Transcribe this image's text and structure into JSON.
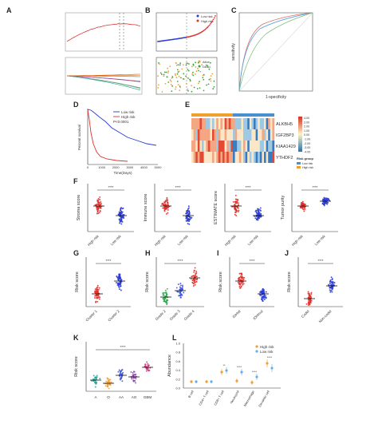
{
  "panel_letters": [
    "A",
    "B",
    "C",
    "D",
    "E",
    "F",
    "G",
    "H",
    "I",
    "J",
    "K",
    "L"
  ],
  "B": {
    "legend": [
      "Low risk",
      "High risk"
    ],
    "legend2": [
      "Alive",
      "Dead"
    ]
  },
  "D": {
    "legend": [
      "Low risk",
      "High risk"
    ],
    "pvalue": "P<0.0001",
    "ylabel": "Percent survival",
    "xlabel": "Time(Days)",
    "xticks": [
      "0",
      "1000",
      "2000",
      "3000",
      "4000",
      "5000"
    ]
  },
  "C": {
    "xlabel": "1-specificity",
    "ylabel": "sensitivity"
  },
  "E": {
    "genes": [
      "ALKBH5",
      "IGF2BP3",
      "KIAA1429",
      "YTHDF2"
    ],
    "scale": [
      "4.00",
      "3.00",
      "2.00",
      "1.00",
      "0.00",
      "-1.00",
      "-2.00",
      "-3.00",
      "-4.00"
    ],
    "risk_group_title": "Risk group",
    "risk_group_items": [
      "Low risk",
      "High risk"
    ]
  },
  "F": {
    "plots": [
      {
        "ylabel": "Stroma score",
        "groups": [
          "High risk",
          "Low risk"
        ],
        "sig": "****"
      },
      {
        "ylabel": "Immune score",
        "groups": [
          "High risk",
          "Low risk"
        ],
        "sig": "****"
      },
      {
        "ylabel": "ESTIMATE score",
        "groups": [
          "High risk",
          "Low risk"
        ],
        "sig": "****"
      },
      {
        "ylabel": "Tumor purity",
        "groups": [
          "High risk",
          "Low risk"
        ],
        "sig": "****"
      }
    ]
  },
  "GJ": {
    "plots": [
      {
        "letter": "G",
        "ylabel": "Risk score",
        "groups": [
          "Cluster 1",
          "Cluster 2"
        ],
        "sig": "****"
      },
      {
        "letter": "H",
        "ylabel": "Risk score",
        "groups": [
          "Grade 2",
          "Grade 3",
          "Grade 4"
        ],
        "sig": "****"
      },
      {
        "letter": "I",
        "ylabel": "Risk score",
        "groups": [
          "IDHwt",
          "IDHmut"
        ],
        "sig": "****"
      },
      {
        "letter": "J",
        "ylabel": "Risk score",
        "groups": [
          "Codel",
          "Non-codel"
        ],
        "sig": "****"
      }
    ]
  },
  "K": {
    "ylabel": "Risk score",
    "groups": [
      "A",
      "O",
      "AA",
      "AO",
      "GBM"
    ],
    "sig": "****"
  },
  "L": {
    "ylabel": "Abundance",
    "yticks": [
      "0.0",
      "0.2",
      "0.4",
      "0.6",
      "0.8",
      "1.0"
    ],
    "legend": [
      "High risk",
      "Low risk"
    ],
    "cells": [
      "B cell",
      "CD4+ T cell",
      "CD8+ T cell",
      "Neutrophil",
      "Macrophage",
      "Dendritic cell"
    ],
    "sigs": [
      "",
      "",
      "**",
      "****",
      "****",
      "****"
    ]
  },
  "colors": {
    "high": "#e0312c",
    "low": "#2a3bd6",
    "orange": "#f0a030",
    "lightblue": "#6aaee8"
  }
}
